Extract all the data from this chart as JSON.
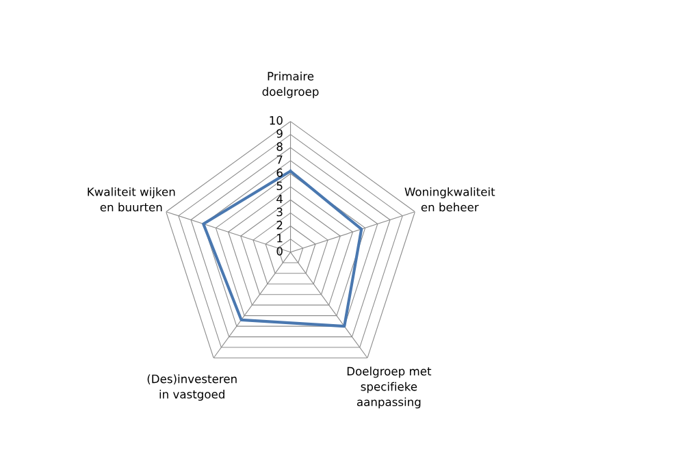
{
  "chart_data": {
    "type": "radar",
    "categories": [
      "Primaire\ndoelgroep",
      "Woningkwaliteit\nen beheer",
      "Doelgroep met\nspecifieke\naanpassing",
      "(Des)investeren\nin vastgoed",
      "Kwaliteit wijken\nen buurten"
    ],
    "series": [
      {
        "color": "#4a78b0",
        "values": [
          6.2,
          5.7,
          7.0,
          6.4,
          7.0
        ]
      }
    ],
    "ylim": [
      0,
      10
    ],
    "yticks": [
      0,
      1,
      2,
      3,
      4,
      5,
      6,
      7,
      8,
      9,
      10
    ],
    "grid": true,
    "marker": "none",
    "line_style": "solid"
  }
}
